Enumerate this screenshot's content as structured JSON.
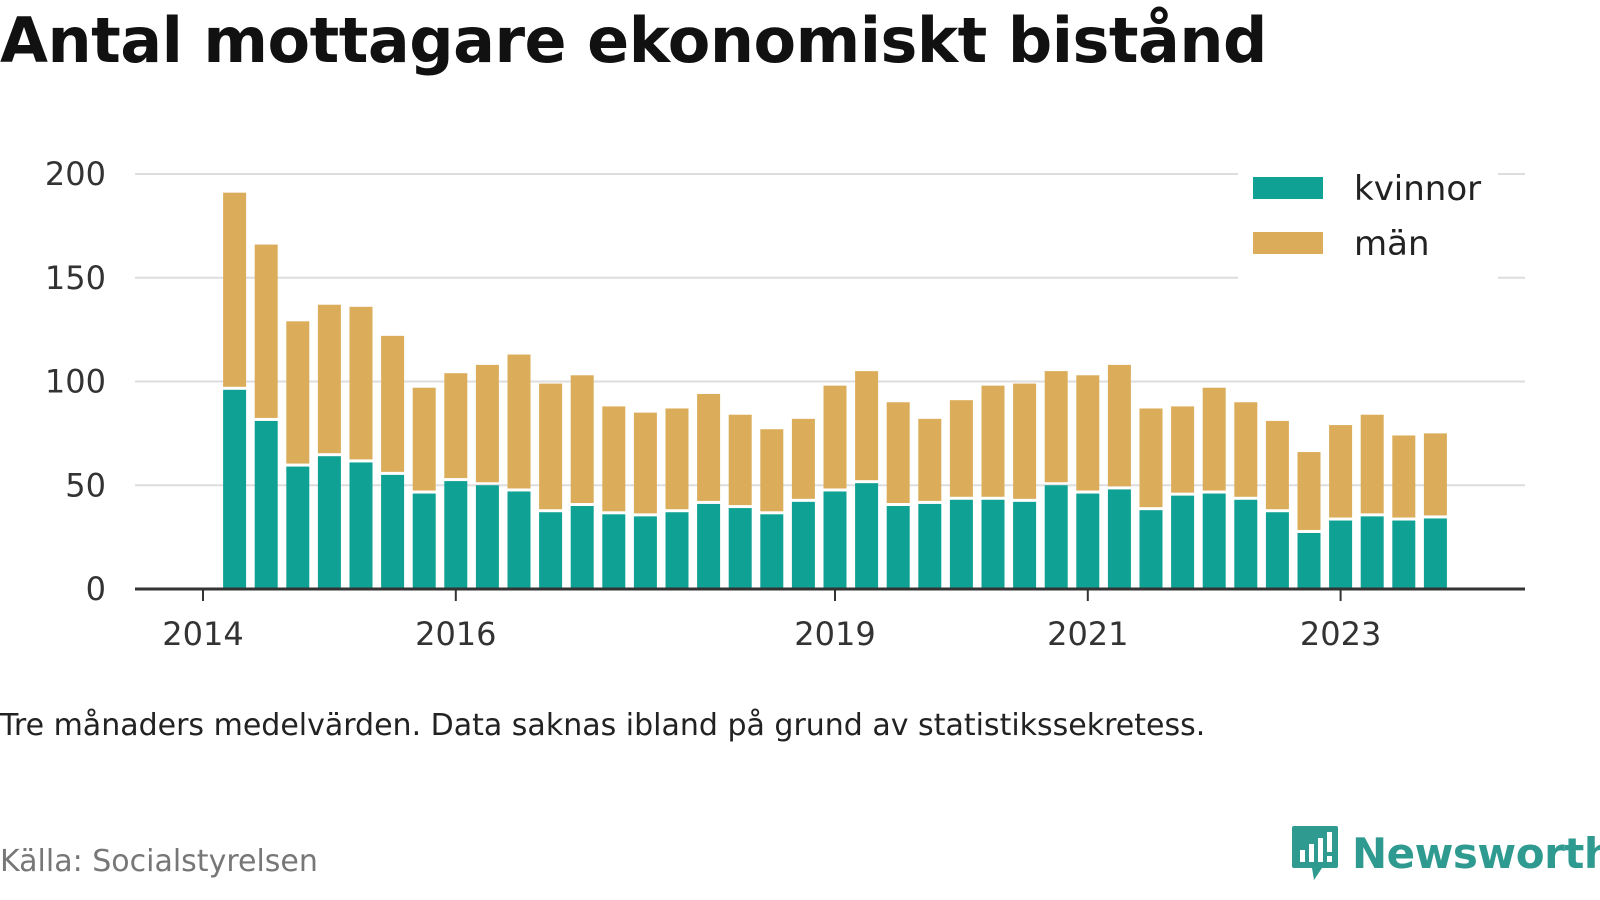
{
  "title": "Antal mottagare ekonomiskt bistånd",
  "note": "Tre månaders medelvärden. Data saknas ibland på grund av statistikssekretess.",
  "source": "Källa: Socialstyrelsen",
  "brand": "Newsworthy",
  "colors": {
    "kvinnor": "#0fa294",
    "man": "#dbad5a",
    "grid": "#dddddd",
    "axis": "#333333",
    "brand": "#2f9a8f"
  },
  "chart_data": {
    "type": "bar",
    "stacked": true,
    "title": "Antal mottagare ekonomiskt bistånd",
    "xlabel": "",
    "ylabel": "",
    "ylim": [
      0,
      200
    ],
    "yticks": [
      0,
      50,
      100,
      150,
      200
    ],
    "xticks": [
      "2014",
      "2016",
      "2019",
      "2021",
      "2023"
    ],
    "grid": true,
    "legend": "top-right",
    "x": [
      "2014-Q2",
      "2014-Q3",
      "2014-Q4",
      "2015-Q1",
      "2015-Q2",
      "2015-Q3",
      "2015-Q4",
      "2016-Q1",
      "2016-Q2",
      "2016-Q3",
      "2016-Q4",
      "2017-Q1",
      "2017-Q2",
      "2017-Q3",
      "2017-Q4",
      "2018-Q1",
      "2018-Q2",
      "2018-Q3",
      "2018-Q4",
      "2019-Q1",
      "2019-Q2",
      "2019-Q3",
      "2019-Q4",
      "2020-Q1",
      "2020-Q2",
      "2020-Q3",
      "2020-Q4",
      "2021-Q1",
      "2021-Q2",
      "2021-Q3",
      "2021-Q4",
      "2022-Q1",
      "2022-Q2",
      "2022-Q3",
      "2022-Q4",
      "2023-Q1",
      "2023-Q2",
      "2023-Q3",
      "2023-Q4"
    ],
    "series": [
      {
        "name": "kvinnor",
        "values": [
          96,
          81,
          59,
          64,
          61,
          55,
          46,
          52,
          50,
          47,
          37,
          40,
          36,
          35,
          37,
          41,
          39,
          36,
          42,
          47,
          51,
          40,
          41,
          43,
          43,
          42,
          50,
          46,
          48,
          38,
          45,
          46,
          43,
          37,
          27,
          33,
          35,
          33,
          34
        ]
      },
      {
        "name": "män",
        "values": [
          95,
          85,
          70,
          73,
          75,
          67,
          51,
          52,
          58,
          66,
          62,
          63,
          52,
          50,
          50,
          53,
          45,
          41,
          40,
          51,
          54,
          50,
          41,
          48,
          55,
          57,
          55,
          57,
          60,
          49,
          43,
          51,
          47,
          44,
          39,
          46,
          49,
          41,
          41
        ]
      }
    ]
  }
}
